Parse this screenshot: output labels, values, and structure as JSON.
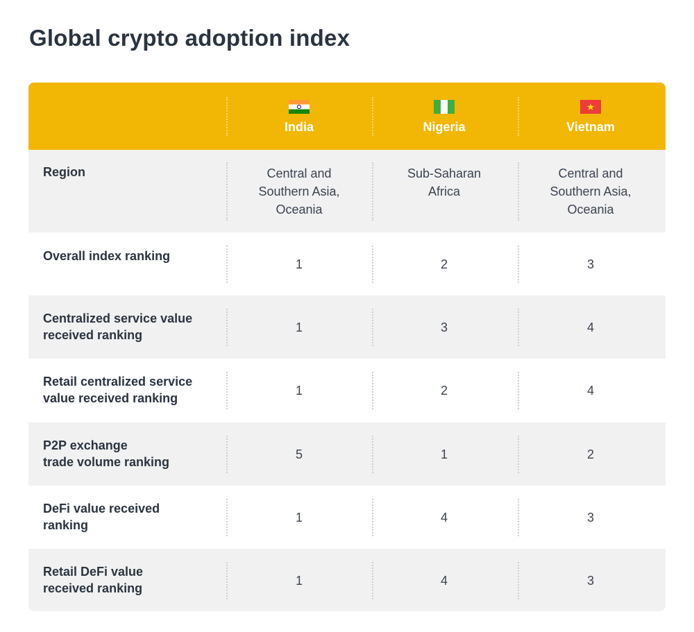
{
  "title": "Global crypto adoption index",
  "colors": {
    "header_bg": "#f2b705",
    "row_shade": "#f1f1f1",
    "row_white": "#ffffff",
    "text_dark": "#2b3440"
  },
  "chart_data": {
    "type": "table",
    "title": "Global crypto adoption index",
    "columns": [
      {
        "name": "India",
        "flag": "india-flag-icon"
      },
      {
        "name": "Nigeria",
        "flag": "nigeria-flag-icon"
      },
      {
        "name": "Vietnam",
        "flag": "vietnam-flag-icon"
      }
    ],
    "rows": [
      {
        "label": "Region",
        "values": [
          "Central and\nSouthern Asia,\nOceania",
          "Sub-Saharan\nAfrica",
          "Central and\nSouthern Asia,\nOceania"
        ]
      },
      {
        "label": "Overall index ranking",
        "values": [
          "1",
          "2",
          "3"
        ]
      },
      {
        "label": "Centralized service value\nreceived ranking",
        "values": [
          "1",
          "3",
          "4"
        ]
      },
      {
        "label": "Retail centralized service\nvalue received ranking",
        "values": [
          "1",
          "2",
          "4"
        ]
      },
      {
        "label": "P2P exchange\ntrade volume ranking",
        "values": [
          "5",
          "1",
          "2"
        ]
      },
      {
        "label": "DeFi value received\nranking",
        "values": [
          "1",
          "4",
          "3"
        ]
      },
      {
        "label": "Retail DeFi value\nreceived ranking",
        "values": [
          "1",
          "4",
          "3"
        ]
      }
    ]
  }
}
